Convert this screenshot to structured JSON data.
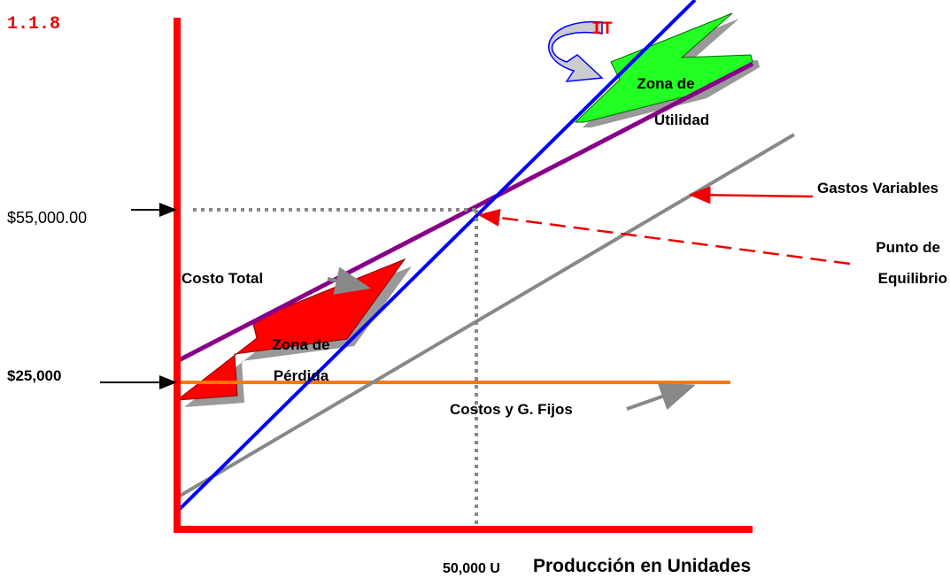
{
  "header": {
    "number": "1.1.8"
  },
  "labels": {
    "it": "IT",
    "utility_zone": [
      "Zona de",
      "Utilidad"
    ],
    "variable_costs": "Gastos Variables",
    "break_even_value": "$55,000.00",
    "break_even_point": [
      "Punto de",
      "Equilibrio"
    ],
    "total_cost": "Costo Total",
    "loss_zone": [
      "Zona de",
      "Pérdida"
    ],
    "fixed_value": "$25,000",
    "fixed_costs": "Costos y G. Fijos",
    "break_even_units": "50,000 U",
    "x_axis": "Producción en Unidades"
  }
}
